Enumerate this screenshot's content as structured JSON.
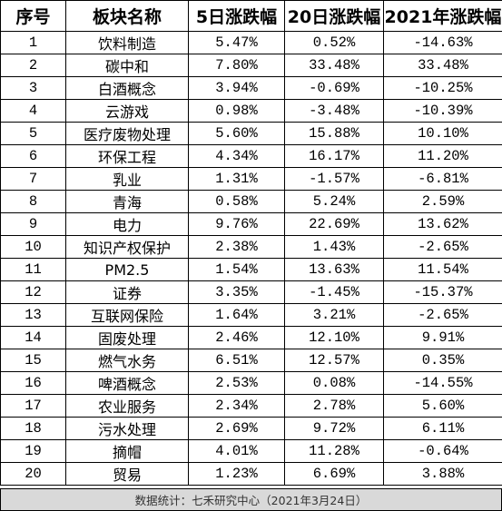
{
  "table": {
    "headers": [
      "序号",
      "板块名称",
      "5日涨跌幅",
      "20日涨跌幅",
      "2021年涨跌幅"
    ],
    "rows": [
      [
        "1",
        "饮料制造",
        "5.47%",
        "0.52%",
        "-14.63%"
      ],
      [
        "2",
        "碳中和",
        "7.80%",
        "33.48%",
        "33.48%"
      ],
      [
        "3",
        "白酒概念",
        "3.94%",
        "-0.69%",
        "-10.25%"
      ],
      [
        "4",
        "云游戏",
        "0.98%",
        "-3.48%",
        "-10.39%"
      ],
      [
        "5",
        "医疗废物处理",
        "5.60%",
        "15.88%",
        "10.10%"
      ],
      [
        "6",
        "环保工程",
        "4.34%",
        "16.17%",
        "11.20%"
      ],
      [
        "7",
        "乳业",
        "1.31%",
        "-1.57%",
        "-6.81%"
      ],
      [
        "8",
        "青海",
        "0.58%",
        "5.24%",
        "2.59%"
      ],
      [
        "9",
        "电力",
        "9.76%",
        "22.69%",
        "13.62%"
      ],
      [
        "10",
        "知识产权保护",
        "2.38%",
        "1.43%",
        "-2.65%"
      ],
      [
        "11",
        "PM2.5",
        "1.54%",
        "13.63%",
        "11.54%"
      ],
      [
        "12",
        "证券",
        "3.35%",
        "-1.45%",
        "-15.37%"
      ],
      [
        "13",
        "互联网保险",
        "1.64%",
        "3.21%",
        "-2.65%"
      ],
      [
        "14",
        "固废处理",
        "2.46%",
        "12.10%",
        "9.91%"
      ],
      [
        "15",
        "燃气水务",
        "6.51%",
        "12.57%",
        "0.35%"
      ],
      [
        "16",
        "啤酒概念",
        "2.53%",
        "0.08%",
        "-14.55%"
      ],
      [
        "17",
        "农业服务",
        "2.34%",
        "2.78%",
        "5.60%"
      ],
      [
        "18",
        "污水处理",
        "2.69%",
        "9.72%",
        "6.11%"
      ],
      [
        "19",
        "摘帽",
        "4.01%",
        "11.28%",
        "-0.64%"
      ],
      [
        "20",
        "贸易",
        "1.23%",
        "6.69%",
        "3.88%"
      ]
    ]
  },
  "footer": {
    "text": "数据统计：七禾研究中心（2021年3月24日）"
  }
}
